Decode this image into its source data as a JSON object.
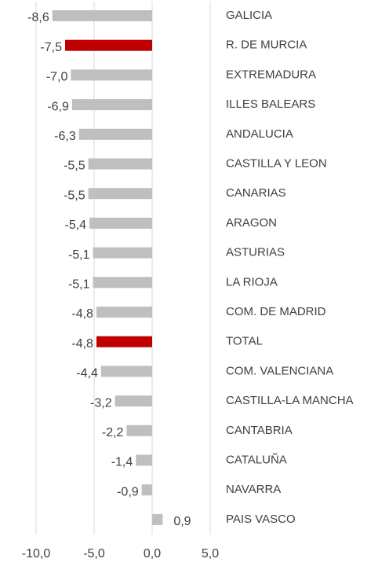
{
  "chart_data": {
    "type": "bar",
    "orientation": "horizontal",
    "categories": [
      "GALICIA",
      "R. DE MURCIA",
      "EXTREMADURA",
      "ILLES BALEARS",
      "ANDALUCIA",
      "CASTILLA Y LEON",
      "CANARIAS",
      "ARAGON",
      "ASTURIAS",
      "LA RIOJA",
      "COM. DE MADRID",
      "TOTAL",
      "COM. VALENCIANA",
      "CASTILLA-LA MANCHA",
      "CANTABRIA",
      "CATALUÑA",
      "NAVARRA",
      "PAIS VASCO"
    ],
    "values": [
      -8.6,
      -7.5,
      -7.0,
      -6.9,
      -6.3,
      -5.5,
      -5.5,
      -5.4,
      -5.1,
      -5.1,
      -4.8,
      -4.8,
      -4.4,
      -3.2,
      -2.2,
      -1.4,
      -0.9,
      0.9
    ],
    "value_labels": [
      "-8,6",
      "-7,5",
      "-7,0",
      "-6,9",
      "-6,3",
      "-5,5",
      "-5,5",
      "-5,4",
      "-5,1",
      "-5,1",
      "-4,8",
      "-4,8",
      "-4,4",
      "-3,2",
      "-2,2",
      "-1,4",
      "-0,9",
      "0,9"
    ],
    "colors": [
      "#bfbfbf",
      "#c00000",
      "#bfbfbf",
      "#bfbfbf",
      "#bfbfbf",
      "#bfbfbf",
      "#bfbfbf",
      "#bfbfbf",
      "#bfbfbf",
      "#bfbfbf",
      "#bfbfbf",
      "#c00000",
      "#bfbfbf",
      "#bfbfbf",
      "#bfbfbf",
      "#bfbfbf",
      "#bfbfbf",
      "#bfbfbf"
    ],
    "xlim": [
      -10,
      5
    ],
    "xticks": [
      {
        "value": -10,
        "label": "-10,0"
      },
      {
        "value": -5,
        "label": "-5,0"
      },
      {
        "value": 0,
        "label": "0,0"
      },
      {
        "value": 5,
        "label": "5,0"
      }
    ],
    "grid": true
  }
}
